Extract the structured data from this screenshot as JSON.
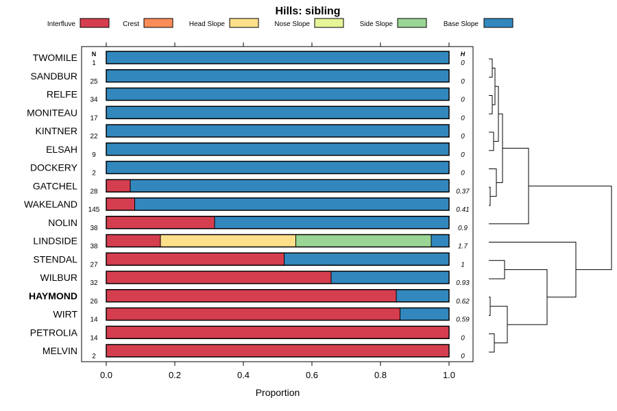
{
  "chart_data": {
    "type": "bar",
    "orientation": "horizontal",
    "stacked": true,
    "title": "Hills: sibling",
    "xlabel": "Proportion",
    "ylabel": "",
    "xlim": [
      0,
      1
    ],
    "xticks": [
      "0.0",
      "0.2",
      "0.4",
      "0.6",
      "0.8",
      "1.0"
    ],
    "xtick_values": [
      0,
      0.2,
      0.4,
      0.6,
      0.8,
      1.0
    ],
    "n_header": "N",
    "h_header": "H",
    "highlight": "HAYMOND",
    "legend_position": "top",
    "series": [
      {
        "name": "Interfluve",
        "color": "#d53e4f"
      },
      {
        "name": "Crest",
        "color": "#fc8d59"
      },
      {
        "name": "Head Slope",
        "color": "#fee08b"
      },
      {
        "name": "Nose Slope",
        "color": "#e6f598"
      },
      {
        "name": "Side Slope",
        "color": "#99d594"
      },
      {
        "name": "Base Slope",
        "color": "#3288bd"
      }
    ],
    "categories": [
      "TWOMILE",
      "SANDBUR",
      "RELFE",
      "MONITEAU",
      "KINTNER",
      "ELSAH",
      "DOCKERY",
      "GATCHEL",
      "WAKELAND",
      "NOLIN",
      "LINDSIDE",
      "STENDAL",
      "WILBUR",
      "HAYMOND",
      "WIRT",
      "PETROLIA",
      "MELVIN"
    ],
    "rows": [
      {
        "name": "TWOMILE",
        "n": "1",
        "h": "0",
        "values": [
          0,
          0,
          0,
          0,
          0,
          1
        ]
      },
      {
        "name": "SANDBUR",
        "n": "25",
        "h": "0",
        "values": [
          0,
          0,
          0,
          0,
          0,
          1
        ]
      },
      {
        "name": "RELFE",
        "n": "34",
        "h": "0",
        "values": [
          0,
          0,
          0,
          0,
          0,
          1
        ]
      },
      {
        "name": "MONITEAU",
        "n": "17",
        "h": "0",
        "values": [
          0,
          0,
          0,
          0,
          0,
          1
        ]
      },
      {
        "name": "KINTNER",
        "n": "22",
        "h": "0",
        "values": [
          0,
          0,
          0,
          0,
          0,
          1
        ]
      },
      {
        "name": "ELSAH",
        "n": "9",
        "h": "0",
        "values": [
          0,
          0,
          0,
          0,
          0,
          1
        ]
      },
      {
        "name": "DOCKERY",
        "n": "2",
        "h": "0",
        "values": [
          0,
          0,
          0,
          0,
          0,
          1
        ]
      },
      {
        "name": "GATCHEL",
        "n": "28",
        "h": "0.37",
        "values": [
          0.07,
          0,
          0,
          0,
          0,
          0.93
        ]
      },
      {
        "name": "WAKELAND",
        "n": "145",
        "h": "0.41",
        "values": [
          0.083,
          0,
          0,
          0,
          0,
          0.917
        ]
      },
      {
        "name": "NOLIN",
        "n": "38",
        "h": "0.9",
        "values": [
          0.316,
          0,
          0,
          0,
          0,
          0.684
        ]
      },
      {
        "name": "LINDSIDE",
        "n": "38",
        "h": "1.7",
        "values": [
          0.158,
          0,
          0.395,
          0,
          0.395,
          0.052
        ]
      },
      {
        "name": "STENDAL",
        "n": "27",
        "h": "1",
        "values": [
          0.519,
          0,
          0,
          0,
          0,
          0.481
        ]
      },
      {
        "name": "WILBUR",
        "n": "32",
        "h": "0.93",
        "values": [
          0.656,
          0,
          0,
          0,
          0,
          0.344
        ]
      },
      {
        "name": "HAYMOND",
        "n": "26",
        "h": "0.62",
        "values": [
          0.846,
          0,
          0,
          0,
          0,
          0.154
        ]
      },
      {
        "name": "WIRT",
        "n": "14",
        "h": "0.59",
        "values": [
          0.857,
          0,
          0,
          0,
          0,
          0.143
        ]
      },
      {
        "name": "PETROLIA",
        "n": "14",
        "h": "0",
        "values": [
          1,
          0,
          0,
          0,
          0,
          0
        ]
      },
      {
        "name": "MELVIN",
        "n": "2",
        "h": "0",
        "values": [
          1,
          0,
          0,
          0,
          0,
          0
        ]
      }
    ]
  }
}
